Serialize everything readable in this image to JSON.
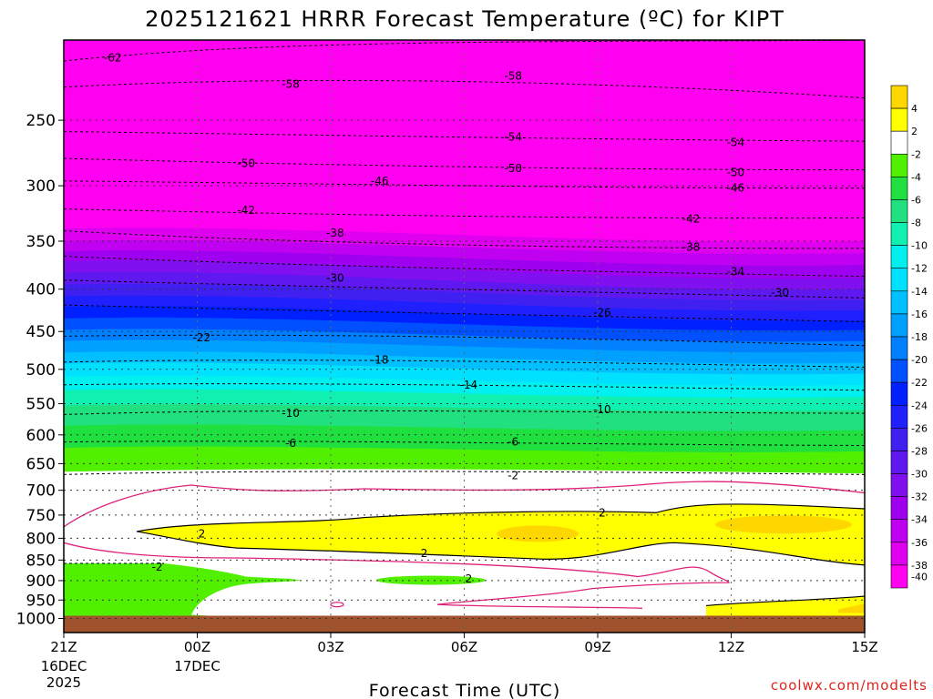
{
  "chart_data": {
    "type": "heatmap",
    "title": "2025121621 HRRR Forecast Temperature (ºC) for KIPT",
    "xlabel": "Forecast Time (UTC)",
    "ylabel": "",
    "credit": "coolwx.com/modelts",
    "x_ticks": [
      {
        "label": "21Z",
        "sub1": "16DEC",
        "sub2": "2025",
        "hour": 0
      },
      {
        "label": "00Z",
        "sub1": "17DEC",
        "sub2": "",
        "hour": 3
      },
      {
        "label": "03Z",
        "sub1": "",
        "sub2": "",
        "hour": 6
      },
      {
        "label": "06Z",
        "sub1": "",
        "sub2": "",
        "hour": 9
      },
      {
        "label": "09Z",
        "sub1": "",
        "sub2": "",
        "hour": 12
      },
      {
        "label": "12Z",
        "sub1": "",
        "sub2": "",
        "hour": 15
      },
      {
        "label": "15Z",
        "sub1": "",
        "sub2": "",
        "hour": 18
      }
    ],
    "xlim": [
      0,
      18
    ],
    "y_ticks": [
      250,
      300,
      350,
      400,
      450,
      500,
      550,
      600,
      650,
      700,
      750,
      800,
      850,
      900,
      950,
      1000
    ],
    "y_tick_labels": [
      "250",
      "300",
      "350",
      "400",
      "450",
      "500",
      "550",
      "600",
      "650",
      "700",
      "750",
      "800",
      "850",
      "900",
      "950",
      "1000"
    ],
    "ylim": [
      1040,
      200
    ],
    "y_scale": "log-pressure",
    "grid": true,
    "colorbar": {
      "labels": [
        "4",
        "2",
        "-2",
        "-4",
        "-6",
        "-8",
        "-10",
        "-12",
        "-14",
        "-16",
        "-18",
        "-20",
        "-22",
        "-24",
        "-26",
        "-28",
        "-30",
        "-32",
        "-34",
        "-36",
        "-38",
        "-40"
      ],
      "colors": [
        "#ffd700",
        "#ffff00",
        "#ffffff",
        "#50f000",
        "#20e040",
        "#20e080",
        "#10f0b0",
        "#00f0f0",
        "#00e0ff",
        "#00c0ff",
        "#00a0ff",
        "#0080ff",
        "#0050ff",
        "#0020ff",
        "#2020ff",
        "#4020f0",
        "#6018f0",
        "#8010f0",
        "#a000f0",
        "#c000f0",
        "#e000f0",
        "#ff00f0"
      ]
    },
    "contour_labels": [
      {
        "text": "-62",
        "hour": 1.1,
        "p": 210
      },
      {
        "text": "-58",
        "hour": 5.1,
        "p": 226
      },
      {
        "text": "-58",
        "hour": 10.1,
        "p": 221
      },
      {
        "text": "-54",
        "hour": 10.1,
        "p": 262
      },
      {
        "text": "-54",
        "hour": 15.1,
        "p": 266
      },
      {
        "text": "-50",
        "hour": 4.1,
        "p": 282
      },
      {
        "text": "-50",
        "hour": 10.1,
        "p": 286
      },
      {
        "text": "-50",
        "hour": 15.1,
        "p": 289
      },
      {
        "text": "-46",
        "hour": 7.1,
        "p": 296
      },
      {
        "text": "-46",
        "hour": 15.1,
        "p": 302
      },
      {
        "text": "-42",
        "hour": 4.1,
        "p": 321
      },
      {
        "text": "-42",
        "hour": 14.1,
        "p": 329
      },
      {
        "text": "-38",
        "hour": 6.1,
        "p": 342
      },
      {
        "text": "-38",
        "hour": 14.1,
        "p": 356
      },
      {
        "text": "-34",
        "hour": 15.1,
        "p": 381
      },
      {
        "text": "-30",
        "hour": 6.1,
        "p": 388
      },
      {
        "text": "-30",
        "hour": 16.1,
        "p": 404
      },
      {
        "text": "-26",
        "hour": 12.1,
        "p": 427
      },
      {
        "text": "-22",
        "hour": 3.1,
        "p": 458
      },
      {
        "text": "-18",
        "hour": 7.1,
        "p": 487
      },
      {
        "text": "-14",
        "hour": 9.1,
        "p": 522
      },
      {
        "text": "-10",
        "hour": 5.1,
        "p": 565
      },
      {
        "text": "-10",
        "hour": 12.1,
        "p": 559
      },
      {
        "text": "-6",
        "hour": 5.1,
        "p": 614
      },
      {
        "text": "-6",
        "hour": 10.1,
        "p": 612
      },
      {
        "text": "-2",
        "hour": 10.1,
        "p": 672
      },
      {
        "text": "2",
        "hour": 12.1,
        "p": 745
      },
      {
        "text": "2",
        "hour": 3.1,
        "p": 790
      },
      {
        "text": "2",
        "hour": 8.1,
        "p": 834
      },
      {
        "text": "-2",
        "hour": 2.1,
        "p": 867
      },
      {
        "text": "2",
        "hour": 9.1,
        "p": 896
      }
    ]
  }
}
